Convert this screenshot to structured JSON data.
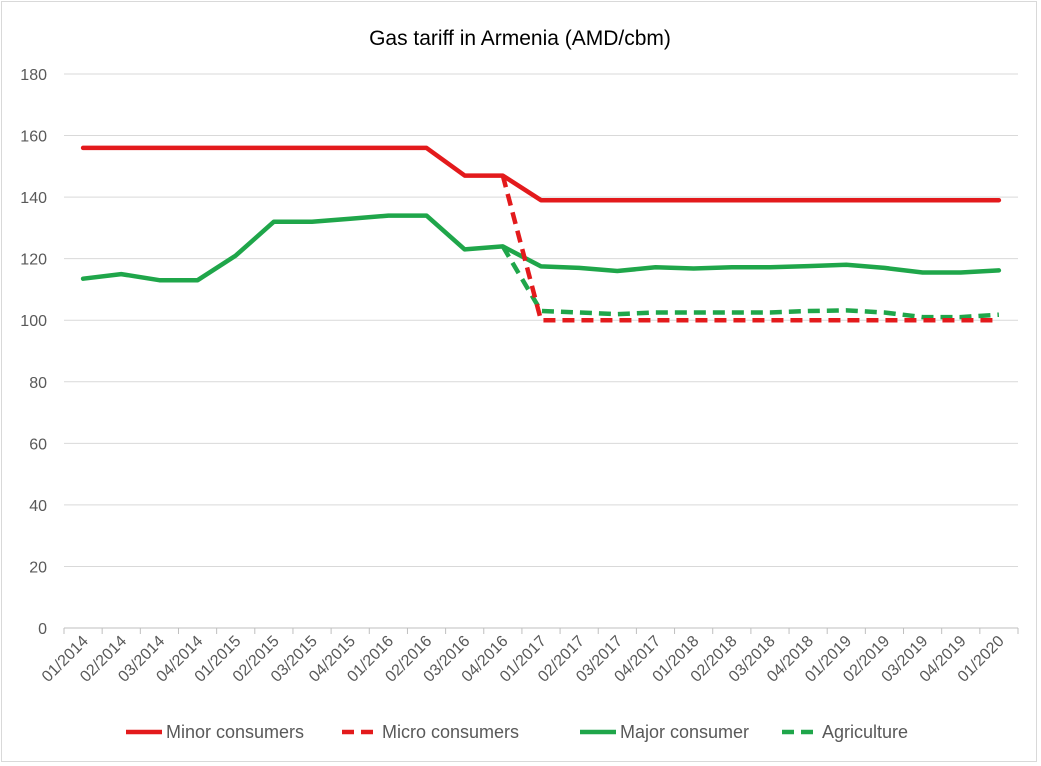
{
  "chart_data": {
    "type": "line",
    "title": "Gas tariff in Armenia (AMD/cbm)",
    "xlabel": "",
    "ylabel": "",
    "categories": [
      "01/2014",
      "02/2014",
      "03/2014",
      "04/2014",
      "01/2015",
      "02/2015",
      "03/2015",
      "04/2015",
      "01/2016",
      "02/2016",
      "03/2016",
      "04/2016",
      "01/2017",
      "02/2017",
      "03/2017",
      "04/2017",
      "01/2018",
      "02/2018",
      "03/2018",
      "04/2018",
      "01/2019",
      "02/2019",
      "03/2019",
      "04/2019",
      "01/2020"
    ],
    "ylim": [
      0,
      180
    ],
    "yticks": [
      0,
      20,
      40,
      60,
      80,
      100,
      120,
      140,
      160,
      180
    ],
    "grid": true,
    "legend_position": "bottom",
    "series": [
      {
        "name": "Minor consumers",
        "color": "#e31a1c",
        "dash": "solid",
        "values": [
          156,
          156,
          156,
          156,
          156,
          156,
          156,
          156,
          156,
          156,
          147,
          147,
          139,
          139,
          139,
          139,
          139,
          139,
          139,
          139,
          139,
          139,
          139,
          139,
          139
        ]
      },
      {
        "name": "Micro consumers",
        "color": "#e31a1c",
        "dash": "dashed",
        "values": [
          null,
          null,
          null,
          null,
          null,
          null,
          null,
          null,
          null,
          null,
          null,
          147,
          100,
          100,
          100,
          100,
          100,
          100,
          100,
          100,
          100,
          100,
          100,
          100,
          100
        ]
      },
      {
        "name": "Major consumer",
        "color": "#1fa64a",
        "dash": "solid",
        "values": [
          113.5,
          115,
          113,
          113,
          121,
          132,
          132,
          133,
          134,
          134,
          123,
          124,
          117.5,
          117,
          116,
          117.2,
          116.8,
          117.2,
          117.2,
          117.6,
          118,
          117,
          115.5,
          115.5,
          116.2
        ]
      },
      {
        "name": "Agriculture",
        "color": "#1fa64a",
        "dash": "dashed",
        "values": [
          null,
          null,
          null,
          null,
          null,
          null,
          null,
          null,
          null,
          null,
          null,
          124,
          103,
          102.5,
          102,
          102.5,
          102.5,
          102.5,
          102.5,
          103,
          103.2,
          102.5,
          101,
          101,
          101.8
        ]
      }
    ]
  }
}
